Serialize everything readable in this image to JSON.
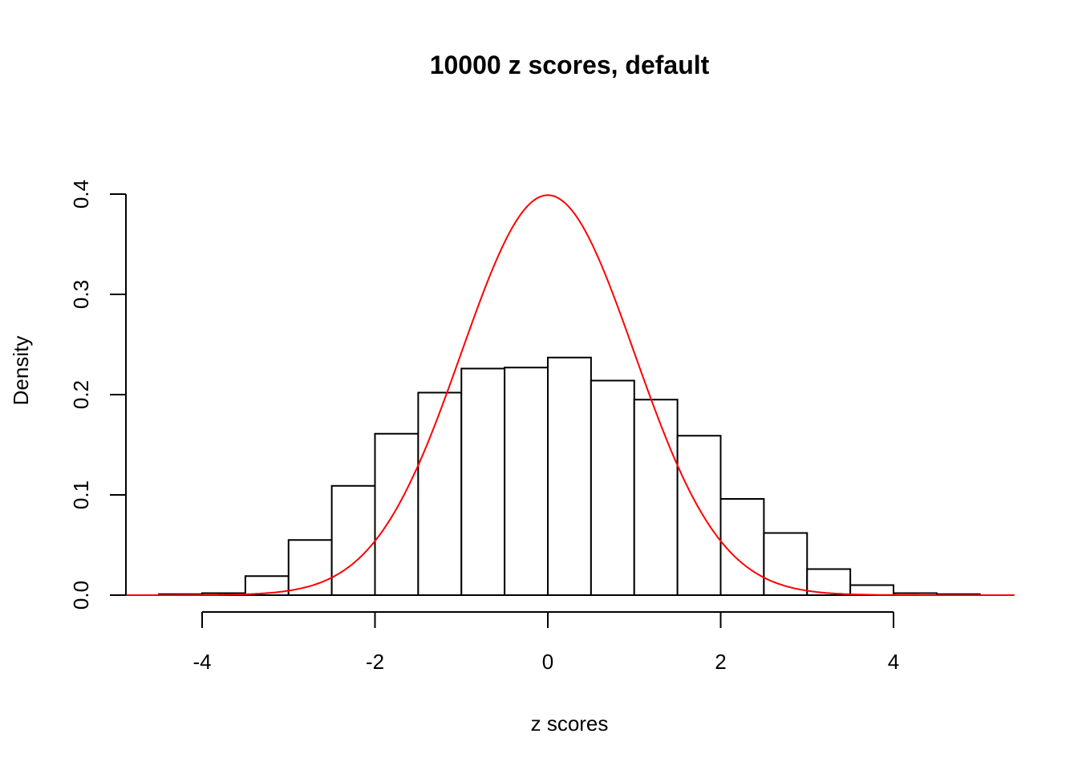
{
  "chart_data": {
    "type": "bar",
    "title": "10000 z scores, default",
    "xlabel": "z scores",
    "ylabel": "Density",
    "xlim": [
      -5,
      5.4
    ],
    "ylim": [
      0,
      0.4
    ],
    "x_ticks": [
      -4,
      -2,
      0,
      2,
      4
    ],
    "x_tick_labels": [
      "-4",
      "-2",
      "0",
      "2",
      "4"
    ],
    "y_ticks": [
      0,
      0.1,
      0.2,
      0.3,
      0.4
    ],
    "y_tick_labels": [
      "0.0",
      "0.1",
      "0.2",
      "0.3",
      "0.4"
    ],
    "grid": false,
    "bins": [
      {
        "from": -4.5,
        "to": -4.0,
        "density": 0.001
      },
      {
        "from": -4.0,
        "to": -3.5,
        "density": 0.002
      },
      {
        "from": -3.5,
        "to": -3.0,
        "density": 0.019
      },
      {
        "from": -3.0,
        "to": -2.5,
        "density": 0.055
      },
      {
        "from": -2.5,
        "to": -2.0,
        "density": 0.109
      },
      {
        "from": -2.0,
        "to": -1.5,
        "density": 0.161
      },
      {
        "from": -1.5,
        "to": -1.0,
        "density": 0.202
      },
      {
        "from": -1.0,
        "to": -0.5,
        "density": 0.226
      },
      {
        "from": -0.5,
        "to": 0.0,
        "density": 0.227
      },
      {
        "from": 0.0,
        "to": 0.5,
        "density": 0.237
      },
      {
        "from": 0.5,
        "to": 1.0,
        "density": 0.214
      },
      {
        "from": 1.0,
        "to": 1.5,
        "density": 0.195
      },
      {
        "from": 1.5,
        "to": 2.0,
        "density": 0.159
      },
      {
        "from": 2.0,
        "to": 2.5,
        "density": 0.096
      },
      {
        "from": 2.5,
        "to": 3.0,
        "density": 0.062
      },
      {
        "from": 3.0,
        "to": 3.5,
        "density": 0.026
      },
      {
        "from": 3.5,
        "to": 4.0,
        "density": 0.01
      },
      {
        "from": 4.0,
        "to": 4.5,
        "density": 0.002
      },
      {
        "from": 4.5,
        "to": 5.0,
        "density": 0.001
      }
    ],
    "overlay_curve": {
      "type": "normal-density",
      "mean": 0,
      "sd": 1,
      "from": -5,
      "to": 5.4,
      "color": "#ff0000"
    },
    "bar_fill": "#ffffff",
    "bar_stroke": "#000000"
  }
}
